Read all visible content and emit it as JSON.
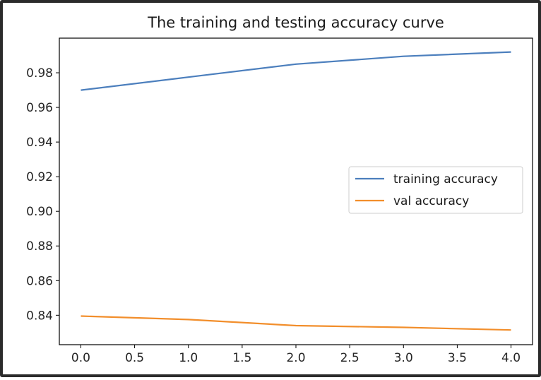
{
  "chart_data": {
    "type": "line",
    "title": "The training and testing accuracy curve",
    "xlabel": "",
    "ylabel": "",
    "xlim": [
      -0.2,
      4.2
    ],
    "ylim": [
      0.823,
      1.0
    ],
    "x_ticks": [
      0.0,
      0.5,
      1.0,
      1.5,
      2.0,
      2.5,
      3.0,
      3.5,
      4.0
    ],
    "x_tick_labels": [
      "0.0",
      "0.5",
      "1.0",
      "1.5",
      "2.0",
      "2.5",
      "3.0",
      "3.5",
      "4.0"
    ],
    "y_ticks": [
      0.84,
      0.86,
      0.88,
      0.9,
      0.92,
      0.94,
      0.96,
      0.98
    ],
    "y_tick_labels": [
      "0.84",
      "0.86",
      "0.88",
      "0.90",
      "0.92",
      "0.94",
      "0.96",
      "0.98"
    ],
    "grid": false,
    "legend_position": "center-right",
    "series": [
      {
        "name": "training accuracy",
        "color": "#4c7fbd",
        "x": [
          0,
          1,
          2,
          3,
          4
        ],
        "y": [
          0.97,
          0.9775,
          0.985,
          0.9895,
          0.992
        ]
      },
      {
        "name": "val accuracy",
        "color": "#f28e2b",
        "x": [
          0,
          1,
          2,
          3,
          4
        ],
        "y": [
          0.8395,
          0.8375,
          0.834,
          0.833,
          0.8315
        ]
      }
    ]
  }
}
